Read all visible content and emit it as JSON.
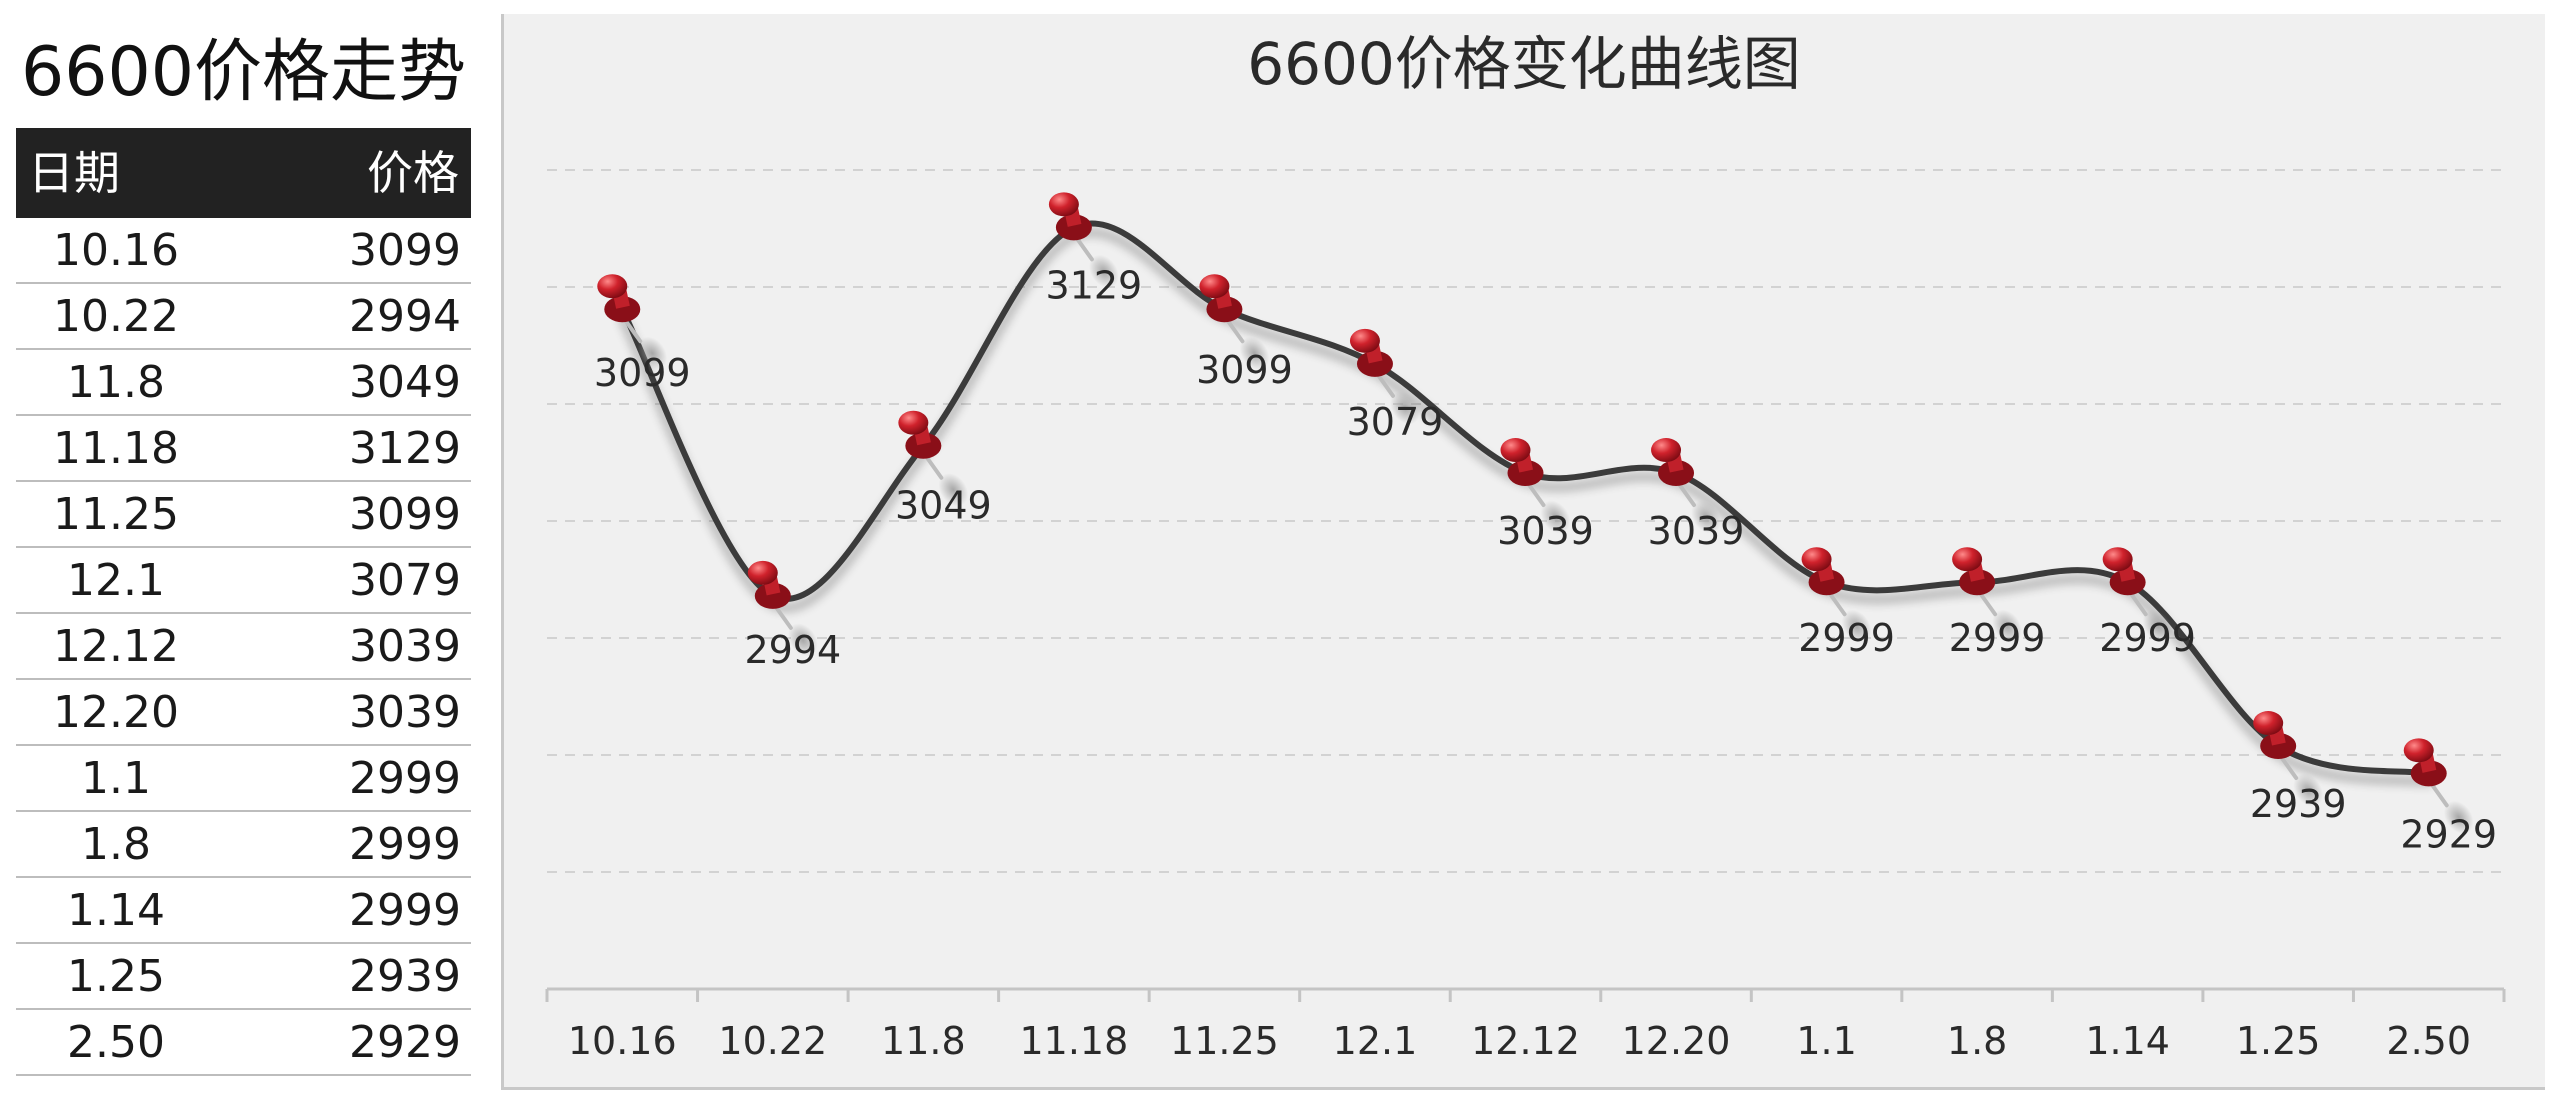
{
  "table": {
    "title": "6600价格走势",
    "header_date": "日期",
    "header_price": "价格",
    "rows": [
      {
        "date": "10.16",
        "price": "3099"
      },
      {
        "date": "10.22",
        "price": "2994"
      },
      {
        "date": "11.8",
        "price": "3049"
      },
      {
        "date": "11.18",
        "price": "3129"
      },
      {
        "date": "11.25",
        "price": "3099"
      },
      {
        "date": "12.1",
        "price": "3079"
      },
      {
        "date": "12.12",
        "price": "3039"
      },
      {
        "date": "12.20",
        "price": "3039"
      },
      {
        "date": "1.1",
        "price": "2999"
      },
      {
        "date": "1.8",
        "price": "2999"
      },
      {
        "date": "1.14",
        "price": "2999"
      },
      {
        "date": "1.25",
        "price": "2939"
      },
      {
        "date": "2.50",
        "price": "2929"
      }
    ]
  },
  "chart_data": {
    "type": "line",
    "title": "6600价格变化曲线图",
    "xlabel": "",
    "ylabel": "",
    "categories": [
      "10.16",
      "10.22",
      "11.8",
      "11.18",
      "11.25",
      "12.1",
      "12.12",
      "12.20",
      "1.1",
      "1.8",
      "1.14",
      "1.25",
      "2.50"
    ],
    "series": [
      {
        "name": "价格",
        "values": [
          3099,
          2994,
          3049,
          3129,
          3099,
          3079,
          3039,
          3039,
          2999,
          2999,
          2999,
          2939,
          2929
        ]
      }
    ],
    "ylim": [
      2850,
      3150
    ],
    "grid": true,
    "marker": "pushpin",
    "colors": {
      "line": "#3a3a3a",
      "pin_head": "#c0202a",
      "pin_dark": "#8a0f18",
      "grid": "#d2d2d2",
      "axis": "#c4c4c4"
    }
  }
}
